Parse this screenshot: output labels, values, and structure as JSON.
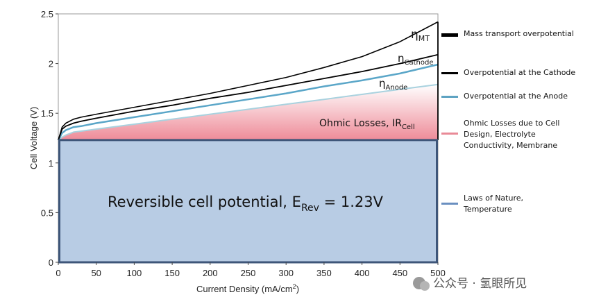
{
  "chart_data": {
    "type": "area",
    "xlabel": "Current Density (mA/cm",
    "xlabel_sup": "2",
    "xlabel_end": ")",
    "ylabel": "Cell Voltage (V)",
    "xlim": [
      0,
      500
    ],
    "ylim": [
      0,
      2.5
    ],
    "x_ticks": [
      "0",
      "50",
      "100",
      "150",
      "200",
      "250",
      "300",
      "350",
      "400",
      "450",
      "500"
    ],
    "y_ticks": [
      "0",
      "0.5",
      "1",
      "1.5",
      "2",
      "2.5"
    ],
    "x_tick_values": [
      0,
      50,
      100,
      150,
      200,
      250,
      300,
      350,
      400,
      450,
      500
    ],
    "y_tick_values": [
      0,
      0.5,
      1,
      1.5,
      2,
      2.5
    ],
    "reversible_potential": 1.23,
    "curves": {
      "x": [
        0,
        5,
        10,
        20,
        30,
        50,
        100,
        150,
        200,
        250,
        300,
        350,
        400,
        450,
        500
      ],
      "ohmic": [
        1.23,
        1.26,
        1.28,
        1.31,
        1.32,
        1.34,
        1.39,
        1.44,
        1.49,
        1.54,
        1.59,
        1.64,
        1.69,
        1.74,
        1.79
      ],
      "anode": [
        1.23,
        1.3,
        1.33,
        1.36,
        1.37,
        1.4,
        1.46,
        1.52,
        1.58,
        1.64,
        1.7,
        1.77,
        1.83,
        1.9,
        1.99
      ],
      "cathode": [
        1.23,
        1.34,
        1.37,
        1.4,
        1.42,
        1.45,
        1.52,
        1.58,
        1.65,
        1.71,
        1.78,
        1.85,
        1.92,
        2.0,
        2.09
      ],
      "mass_transport": [
        1.23,
        1.36,
        1.4,
        1.44,
        1.46,
        1.49,
        1.56,
        1.63,
        1.7,
        1.78,
        1.86,
        1.96,
        2.07,
        2.22,
        2.42
      ]
    },
    "labels": {
      "reversible": "Reversible cell potential, E",
      "reversible_sub": "Rev",
      "reversible_end": " = 1.23V",
      "ohmic": "Ohmic Losses, IR",
      "ohmic_sub": "Cell",
      "eta_anode_sub": "Anode",
      "eta_cathode_sub": "Cathode",
      "eta_mt_sub": "MT",
      "eta_symbol": "η"
    },
    "legend": [
      {
        "lines": [
          "Mass transport overpotential"
        ],
        "color": "#000000"
      },
      {
        "lines": [
          "Overpotential at the Cathode"
        ],
        "color": "#000000"
      },
      {
        "lines": [
          "Overpotential at the Anode"
        ],
        "color": "#5ea3c2"
      },
      {
        "lines": [
          "Ohmic Losses due to Cell",
          "Design, Electrolyte",
          "Conductivity, Membrane"
        ],
        "color": "#e98a97"
      },
      {
        "lines": [
          "Laws of Nature,",
          "Temperature"
        ],
        "color": "#6a8fc0"
      }
    ],
    "colors": {
      "reversible_fill": "#b8cce4",
      "reversible_border": "#3e5679",
      "ohmic_fill_top": "#ffffff",
      "ohmic_fill_bottom": "#ee8b98",
      "anode_fill": "#ffffff",
      "anode_line": "#a9d2df",
      "cathode_line": "#5aa6c8",
      "curve_line": "#000000"
    }
  },
  "watermark": "公众号 · 氢眼所见"
}
